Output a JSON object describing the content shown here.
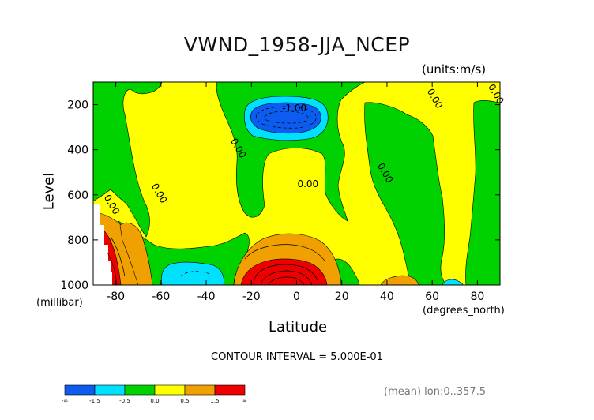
{
  "chart_data": {
    "type": "heatmap",
    "title": "VWND_1958-JJA_NCEP",
    "units_label": "(units:m/s)",
    "ylabel": "Level",
    "ylabel_units": "(millibar)",
    "xlabel": "Latitude",
    "xlabel_units": "(degrees_north)",
    "xlim": [
      -90,
      90
    ],
    "ylim": [
      1000,
      100
    ],
    "xticks": [
      -80,
      -60,
      -40,
      -20,
      0,
      20,
      40,
      60,
      80
    ],
    "yticks": [
      200,
      400,
      600,
      800,
      1000
    ],
    "grid": false,
    "contour_interval_text": "CONTOUR INTERVAL = 5.000E-01",
    "mean_text": "(mean) lon:0..357.5",
    "contour_labels": [
      {
        "text": "-1.00",
        "lat": -1,
        "level": 230
      },
      {
        "text": "0.00",
        "lat": 5,
        "level": 565
      },
      {
        "text": "0.00",
        "lat": -27,
        "level": 400
      },
      {
        "text": "0.00",
        "lat": -62,
        "level": 600
      },
      {
        "text": "0.00",
        "lat": -83,
        "level": 650
      },
      {
        "text": "0.00",
        "lat": 38,
        "level": 510
      },
      {
        "text": "0.00",
        "lat": 60,
        "level": 180
      },
      {
        "text": "0.00",
        "lat": 87,
        "level": 160
      }
    ],
    "color_bins": [
      {
        "range": "< -1.5",
        "color": "#0c5cf0"
      },
      {
        "range": "-1.5 to -0.5",
        "color": "#00e0ff"
      },
      {
        "range": "-0.5 to 0.0",
        "color": "#00d200"
      },
      {
        "range": "0.0 to 0.5",
        "color": "#ffff00"
      },
      {
        "range": "0.5 to 1.5",
        "color": "#f0a000"
      },
      {
        "range": "> 1.5",
        "color": "#ee0000"
      }
    ],
    "colorbar_labels": [
      "-∞",
      "-1.5",
      "-0.5",
      "0.0",
      "0.5",
      "1.5",
      "∞"
    ]
  }
}
